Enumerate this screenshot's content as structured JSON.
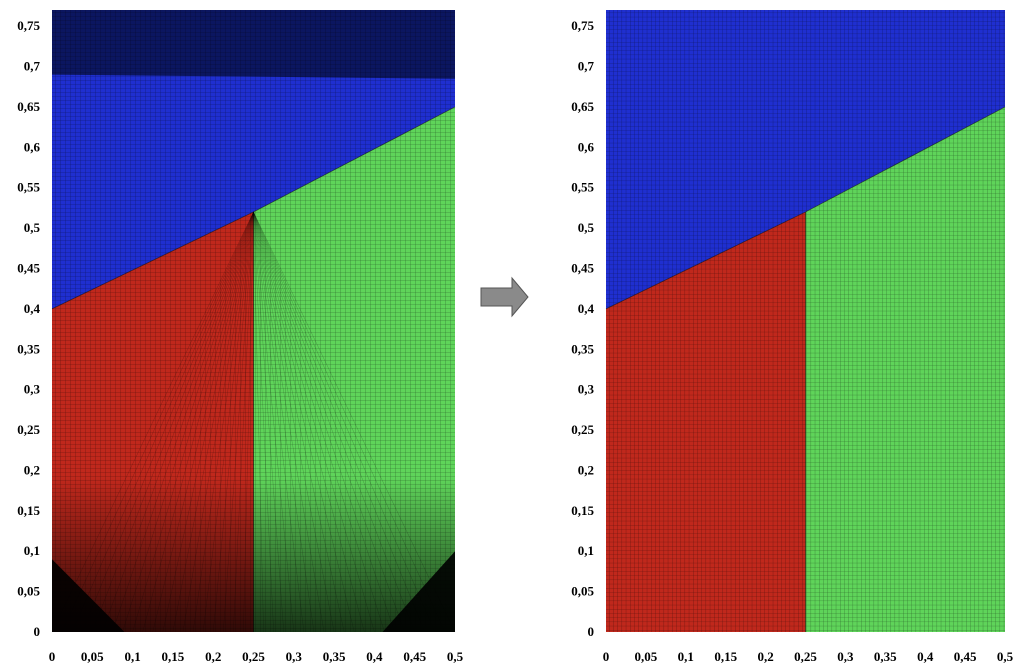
{
  "panels": [
    {
      "id": "left",
      "description_free": true,
      "x_ticks": [
        "0",
        "0,05",
        "0,1",
        "0,15",
        "0,2",
        "0,25",
        "0,3",
        "0,35",
        "0,4",
        "0,45",
        "0,5"
      ],
      "y_ticks": [
        "0",
        "0,05",
        "0,1",
        "0,15",
        "0,2",
        "0,25",
        "0,3",
        "0,35",
        "0,4",
        "0,45",
        "0,5",
        "0,55",
        "0,6",
        "0,65",
        "0,7",
        "0,75"
      ],
      "xlim": [
        0,
        0.5
      ],
      "ylim": [
        0,
        0.77
      ]
    },
    {
      "id": "right",
      "x_ticks": [
        "0",
        "0,05",
        "0,1",
        "0,15",
        "0,2",
        "0,25",
        "0,3",
        "0,35",
        "0,4",
        "0,45",
        "0,5"
      ],
      "y_ticks": [
        "0",
        "0,05",
        "0,1",
        "0,15",
        "0,2",
        "0,25",
        "0,3",
        "0,35",
        "0,4",
        "0,45",
        "0,5",
        "0,55",
        "0,6",
        "0,65",
        "0,7",
        "0,75"
      ],
      "xlim": [
        0,
        0.5
      ],
      "ylim": [
        0,
        0.77
      ]
    }
  ],
  "regions": {
    "red": {
      "color": "#c0281c",
      "boundary": [
        [
          0,
          0
        ],
        [
          0.25,
          0
        ],
        [
          0.25,
          0.52
        ],
        [
          0,
          0.4
        ]
      ]
    },
    "green": {
      "color": "#5fd45a",
      "boundary": [
        [
          0.25,
          0
        ],
        [
          0.5,
          0
        ],
        [
          0.5,
          0.65
        ],
        [
          0.25,
          0.52
        ]
      ]
    },
    "blue": {
      "color": "#1f2fd0",
      "boundary": [
        [
          0,
          0.4
        ],
        [
          0.25,
          0.52
        ],
        [
          0.5,
          0.65
        ],
        [
          0.5,
          0.77
        ],
        [
          0,
          0.77
        ]
      ]
    }
  },
  "colors": {
    "dark_blue_band": "#0b1660",
    "mesh_line": "#000000",
    "arrow_fill": "#8a8a8a"
  },
  "icons": {
    "arrow": "right-arrow-icon"
  }
}
